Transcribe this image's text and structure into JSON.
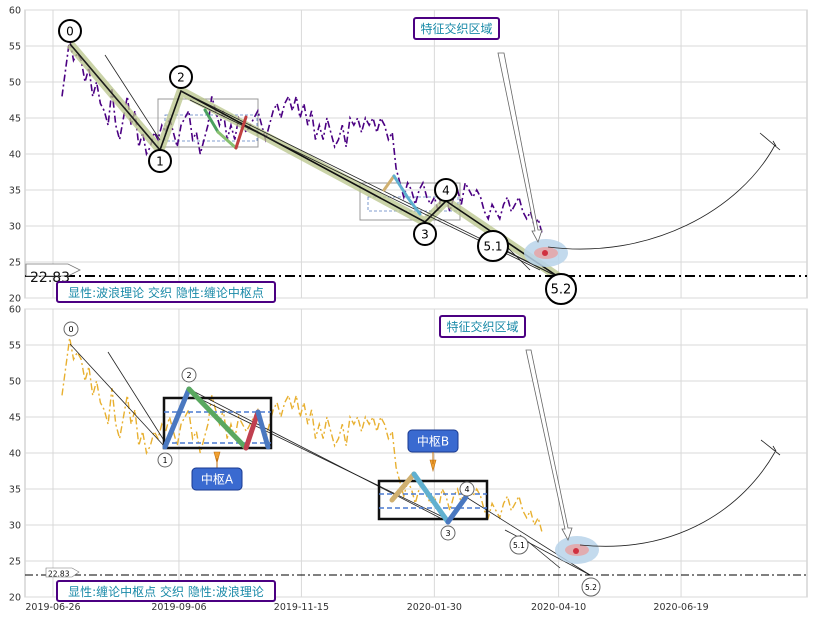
{
  "chart_data": [
    {
      "type": "line",
      "panel": "top",
      "ylim": [
        20,
        60
      ],
      "yticks": [
        20,
        25,
        30,
        35,
        40,
        45,
        50,
        55,
        60
      ],
      "xlim": [
        "2019-06-10",
        "2020-08-30"
      ],
      "price_color": "#4b0082",
      "price": [
        [
          0,
          48
        ],
        [
          2,
          52
        ],
        [
          4,
          56
        ],
        [
          6,
          53
        ],
        [
          8,
          54
        ],
        [
          10,
          53
        ],
        [
          12,
          50
        ],
        [
          14,
          52
        ],
        [
          16,
          48
        ],
        [
          18,
          50
        ],
        [
          20,
          47
        ],
        [
          22,
          46
        ],
        [
          24,
          44
        ],
        [
          26,
          49
        ],
        [
          28,
          44
        ],
        [
          30,
          42
        ],
        [
          32,
          45
        ],
        [
          34,
          48
        ],
        [
          36,
          44
        ],
        [
          38,
          46
        ],
        [
          40,
          41
        ],
        [
          42,
          43
        ],
        [
          44,
          40
        ],
        [
          46,
          41
        ],
        [
          48,
          43
        ],
        [
          50,
          42
        ],
        [
          52,
          44
        ],
        [
          54,
          43
        ],
        [
          56,
          45
        ],
        [
          58,
          43
        ],
        [
          60,
          41
        ],
        [
          62,
          44
        ],
        [
          64,
          45
        ],
        [
          66,
          46
        ],
        [
          68,
          42
        ],
        [
          70,
          43
        ],
        [
          72,
          40
        ],
        [
          74,
          42
        ],
        [
          76,
          44
        ],
        [
          78,
          48
        ],
        [
          80,
          46
        ],
        [
          82,
          44
        ],
        [
          84,
          46
        ],
        [
          86,
          42
        ],
        [
          88,
          44
        ],
        [
          90,
          42
        ],
        [
          92,
          45
        ],
        [
          94,
          44
        ],
        [
          96,
          43
        ],
        [
          98,
          44
        ],
        [
          100,
          45
        ],
        [
          102,
          46
        ],
        [
          104,
          44
        ],
        [
          106,
          42
        ],
        [
          108,
          44
        ],
        [
          110,
          46
        ],
        [
          112,
          47
        ],
        [
          114,
          45
        ],
        [
          116,
          47
        ],
        [
          118,
          48
        ],
        [
          120,
          46
        ],
        [
          122,
          48
        ],
        [
          124,
          45
        ],
        [
          126,
          47
        ],
        [
          128,
          44
        ],
        [
          130,
          46
        ],
        [
          132,
          42
        ],
        [
          134,
          44
        ],
        [
          136,
          42
        ],
        [
          138,
          45
        ],
        [
          140,
          43
        ],
        [
          142,
          41
        ],
        [
          144,
          42
        ],
        [
          146,
          44
        ],
        [
          148,
          41
        ],
        [
          150,
          45
        ],
        [
          152,
          44
        ],
        [
          154,
          45
        ],
        [
          156,
          43
        ],
        [
          158,
          45
        ],
        [
          160,
          44
        ],
        [
          162,
          45
        ],
        [
          164,
          43
        ],
        [
          166,
          45
        ],
        [
          168,
          44
        ],
        [
          170,
          42
        ],
        [
          172,
          43
        ],
        [
          174,
          38
        ],
        [
          176,
          36
        ],
        [
          178,
          34
        ],
        [
          180,
          36
        ],
        [
          182,
          35
        ],
        [
          184,
          33
        ],
        [
          186,
          35
        ],
        [
          188,
          36
        ],
        [
          190,
          34
        ],
        [
          192,
          33
        ],
        [
          194,
          34
        ],
        [
          196,
          32
        ],
        [
          198,
          35
        ],
        [
          200,
          34
        ],
        [
          202,
          32
        ],
        [
          204,
          34
        ],
        [
          206,
          35
        ],
        [
          208,
          33
        ],
        [
          210,
          36
        ],
        [
          212,
          35
        ],
        [
          214,
          34
        ],
        [
          216,
          35
        ],
        [
          218,
          34
        ],
        [
          220,
          32
        ],
        [
          222,
          31
        ],
        [
          224,
          33
        ],
        [
          226,
          32
        ],
        [
          228,
          31
        ],
        [
          230,
          33
        ],
        [
          232,
          34
        ],
        [
          234,
          32
        ],
        [
          236,
          33
        ],
        [
          238,
          34
        ],
        [
          240,
          32
        ],
        [
          242,
          31
        ],
        [
          244,
          32
        ],
        [
          246,
          30
        ],
        [
          248,
          31
        ],
        [
          250,
          29
        ]
      ],
      "wave_points": [
        {
          "label": "0",
          "date": "2019-07-01",
          "value": 55.5
        },
        {
          "label": "1",
          "date": "2019-08-26",
          "value": 40.2
        },
        {
          "label": "2",
          "date": "2019-09-05",
          "value": 49.0
        },
        {
          "label": "3",
          "date": "2020-01-24",
          "value": 30.5
        },
        {
          "label": "4",
          "date": "2020-02-01",
          "value": 33.8
        },
        {
          "label": "5.1",
          "date": "2020-03-13",
          "value": 26.5
        },
        {
          "label": "5.2",
          "date": "2020-04-22",
          "value": 22.6
        }
      ],
      "hline": 22.83,
      "hline_label": "22.83",
      "annotation": "特征交织区域",
      "legend": "显性:波浪理论 交织 隐性:缠论中枢点"
    },
    {
      "type": "line",
      "panel": "bottom",
      "ylim": [
        20,
        60
      ],
      "yticks": [
        20,
        25,
        30,
        35,
        40,
        45,
        50,
        55,
        60
      ],
      "xlim": [
        "2019-06-10",
        "2020-08-30"
      ],
      "price_color": "#e8b030",
      "xticks": [
        "2019-06-26",
        "2019-09-06",
        "2019-11-15",
        "2020-01-30",
        "2020-04-10",
        "2020-06-19"
      ],
      "wave_points": [
        {
          "label": "0",
          "date": "2019-07-01",
          "value": 55.5
        },
        {
          "label": "1",
          "date": "2019-08-26",
          "value": 40.2
        },
        {
          "label": "2",
          "date": "2019-09-05",
          "value": 49.0
        },
        {
          "label": "3",
          "date": "2020-01-24",
          "value": 30.5
        },
        {
          "label": "4",
          "date": "2020-02-01",
          "value": 33.8
        },
        {
          "label": "5.1",
          "date": "2020-03-13",
          "value": 26.5
        },
        {
          "label": "5.2",
          "date": "2020-04-22",
          "value": 22.6
        }
      ],
      "zhongshu": [
        {
          "label": "中枢A",
          "y_low": 40.5,
          "y_high": 47.5
        },
        {
          "label": "中枢B",
          "y_low": 30.5,
          "y_high": 36.0
        }
      ],
      "hline": 22.83,
      "hline_label": "22.83",
      "annotation": "特征交织区域",
      "legend": "显性:缠论中枢点 交织 隐性:波浪理论"
    }
  ],
  "labels": {
    "top_annotation": "特征交织区域",
    "top_legend": "显性:波浪理论 交织 隐性:缠论中枢点",
    "top_hline": "22.83",
    "bottom_annotation": "特征交织区域",
    "bottom_legend": "显性:缠论中枢点 交织 隐性:波浪理论",
    "bottom_hline": "22.83",
    "zs_a": "中枢A",
    "zs_b": "中枢B",
    "w0": "0",
    "w1": "1",
    "w2": "2",
    "w3": "3",
    "w4": "4",
    "w51": "5.1",
    "w52": "5.2"
  }
}
